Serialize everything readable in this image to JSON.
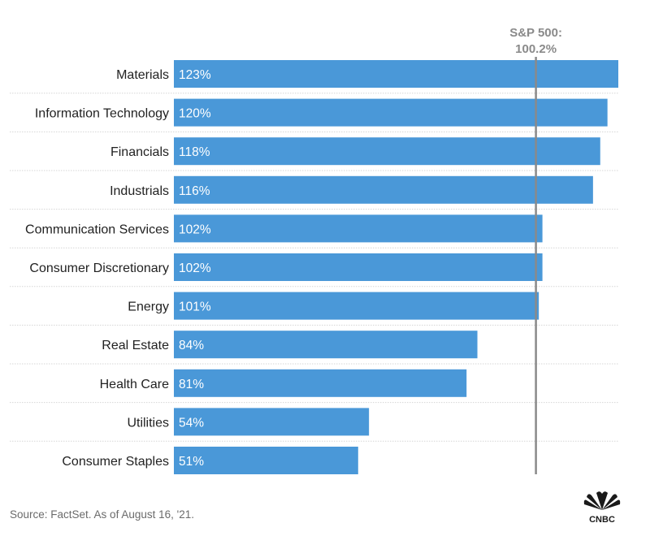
{
  "chart_data": {
    "type": "bar",
    "orientation": "horizontal",
    "categories": [
      "Materials",
      "Information Technology",
      "Financials",
      "Industrials",
      "Communication Services",
      "Consumer Discretionary",
      "Energy",
      "Real Estate",
      "Health Care",
      "Utilities",
      "Consumer Staples"
    ],
    "values": [
      123,
      120,
      118,
      116,
      102,
      102,
      101,
      84,
      81,
      54,
      51
    ],
    "value_labels": [
      "123%",
      "120%",
      "118%",
      "116%",
      "102%",
      "102%",
      "101%",
      "84%",
      "81%",
      "54%",
      "51%"
    ],
    "xlim": [
      0,
      123
    ],
    "reference_line": {
      "value": 100.2,
      "label_line1": "S&P 500:",
      "label_line2": "100.2%"
    },
    "grid": false,
    "bar_color": "#4a98d8"
  },
  "source": "Source: FactSet. As of August 16, '21.",
  "logo": {
    "text": "CNBC",
    "icon": "peacock-logo-icon"
  }
}
